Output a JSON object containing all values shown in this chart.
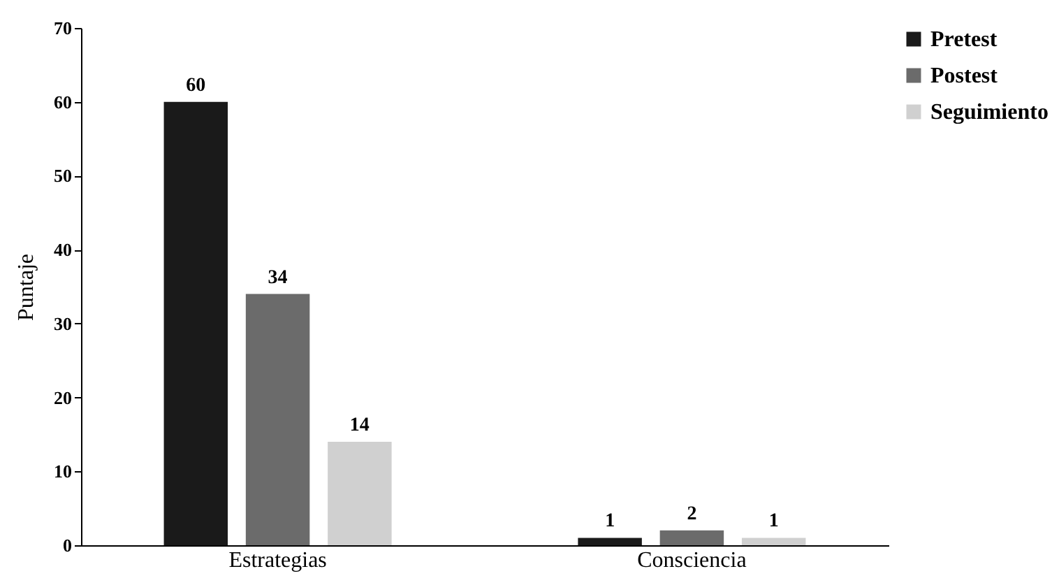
{
  "chart_data": {
    "type": "bar",
    "ylabel": "Puntaje",
    "categories": [
      "Estrategias",
      "Consciencia"
    ],
    "series": [
      {
        "name": "Pretest",
        "color": "#1a1a1a",
        "values": [
          60,
          1
        ]
      },
      {
        "name": "Postest",
        "color": "#6b6b6b",
        "values": [
          34,
          2
        ]
      },
      {
        "name": "Seguimiento",
        "color": "#d0d0d0",
        "values": [
          14,
          1
        ]
      }
    ],
    "ylim": [
      0,
      70
    ],
    "yticks": [
      0,
      10,
      20,
      30,
      40,
      50,
      60,
      70
    ],
    "data_labels": true,
    "grid": false,
    "legend": "top right"
  }
}
